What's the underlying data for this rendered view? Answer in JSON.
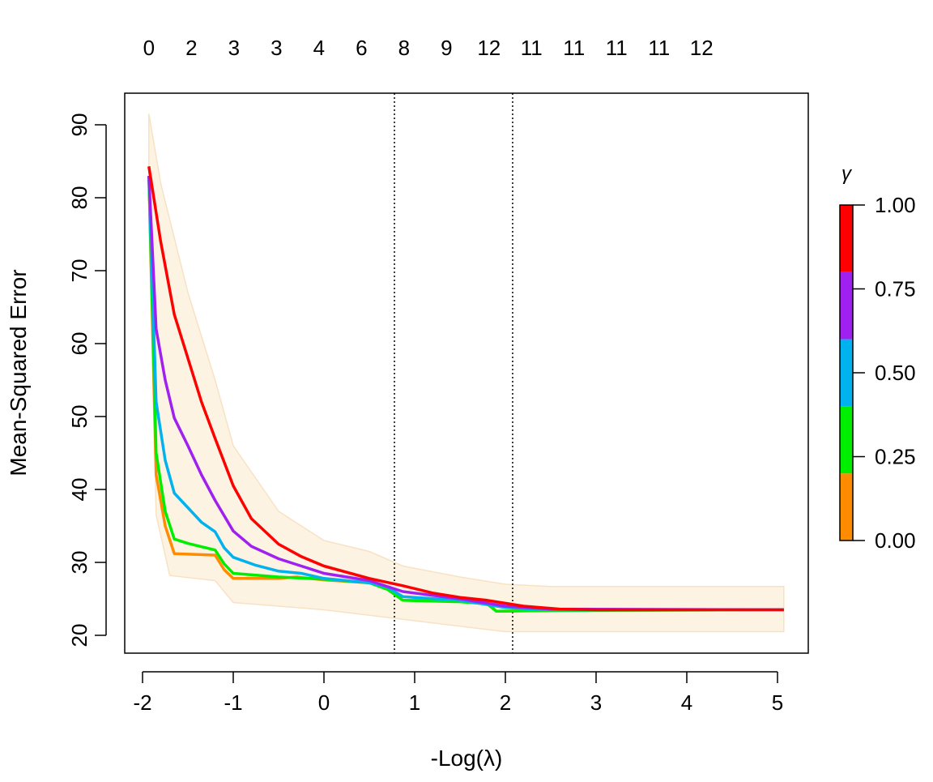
{
  "chart_data": {
    "type": "line",
    "title": "",
    "xlabel": "-Log(λ)",
    "ylabel": "Mean-Squared Error",
    "xlim": [
      -2.2,
      5.35
    ],
    "ylim": [
      17.5,
      94.5
    ],
    "x_ticks": [
      "-2",
      "-1",
      "0",
      "1",
      "2",
      "3",
      "4",
      "5"
    ],
    "y_ticks": [
      "20",
      "30",
      "40",
      "50",
      "60",
      "70",
      "80",
      "90"
    ],
    "top_axis_labels": [
      "0",
      "2",
      "3",
      "3",
      "4",
      "6",
      "8",
      "9",
      "12",
      "11",
      "11",
      "11",
      "11",
      "12"
    ],
    "top_axis_start": -1.93,
    "top_axis_step": 0.4687,
    "vlines": [
      0.777,
      2.08
    ],
    "band": {
      "color": "#fdf3e3",
      "upper": [
        [
          -1.93,
          91.5
        ],
        [
          -1.8,
          82
        ],
        [
          -1.5,
          67
        ],
        [
          -1.2,
          55
        ],
        [
          -1,
          46
        ],
        [
          -0.5,
          37
        ],
        [
          0,
          33
        ],
        [
          0.5,
          31.5
        ],
        [
          0.87,
          29.5
        ],
        [
          1.5,
          28
        ],
        [
          2,
          27
        ],
        [
          2.5,
          26.7
        ],
        [
          5.07,
          26.7
        ]
      ],
      "lower": [
        [
          -1.93,
          77
        ],
        [
          -1.85,
          36.5
        ],
        [
          -1.7,
          28.2
        ],
        [
          -1.2,
          27.5
        ],
        [
          -1,
          24.5
        ],
        [
          0,
          23.5
        ],
        [
          1,
          22
        ],
        [
          2,
          20.5
        ],
        [
          5.07,
          20.5
        ]
      ]
    },
    "series": [
      {
        "name": "γ=0.00",
        "color": "#ff8c00",
        "points": [
          [
            -1.93,
            83
          ],
          [
            -1.85,
            42
          ],
          [
            -1.75,
            35
          ],
          [
            -1.65,
            31.2
          ],
          [
            -1.2,
            31
          ],
          [
            -1.1,
            29
          ],
          [
            -1,
            27.8
          ],
          [
            -0.5,
            27.8
          ],
          [
            -0.3,
            28
          ],
          [
            0,
            27.6
          ],
          [
            0.5,
            27.2
          ],
          [
            0.7,
            26.5
          ],
          [
            0.87,
            24.8
          ],
          [
            1.5,
            24.8
          ],
          [
            1.8,
            24.5
          ],
          [
            1.9,
            23.3
          ],
          [
            2.5,
            23.4
          ],
          [
            5.07,
            23.5
          ]
        ]
      },
      {
        "name": "γ=0.25",
        "color": "#00ee00",
        "points": [
          [
            -1.93,
            83
          ],
          [
            -1.85,
            45
          ],
          [
            -1.75,
            37
          ],
          [
            -1.65,
            33.2
          ],
          [
            -1.5,
            32.6
          ],
          [
            -1.2,
            31.7
          ],
          [
            -1.1,
            29.8
          ],
          [
            -1,
            28.5
          ],
          [
            -0.5,
            28
          ],
          [
            0,
            27.7
          ],
          [
            0.5,
            27.2
          ],
          [
            0.7,
            26.3
          ],
          [
            0.87,
            24.8
          ],
          [
            1.5,
            24.6
          ],
          [
            1.8,
            24.3
          ],
          [
            1.9,
            23.3
          ],
          [
            2.5,
            23.4
          ],
          [
            5.07,
            23.5
          ]
        ]
      },
      {
        "name": "γ=0.50",
        "color": "#00b2ee",
        "points": [
          [
            -1.93,
            83
          ],
          [
            -1.85,
            52
          ],
          [
            -1.75,
            44
          ],
          [
            -1.65,
            39.5
          ],
          [
            -1.5,
            37.5
          ],
          [
            -1.35,
            35.5
          ],
          [
            -1.2,
            34.2
          ],
          [
            -1.1,
            32
          ],
          [
            -1,
            30.7
          ],
          [
            -0.75,
            29.6
          ],
          [
            -0.5,
            28.8
          ],
          [
            -0.25,
            28.5
          ],
          [
            0,
            27.8
          ],
          [
            0.5,
            27.2
          ],
          [
            0.7,
            26.6
          ],
          [
            0.87,
            25.3
          ],
          [
            1.5,
            24.8
          ],
          [
            2,
            23.8
          ],
          [
            2.5,
            23.5
          ],
          [
            5.07,
            23.5
          ]
        ]
      },
      {
        "name": "γ=0.75",
        "color": "#a020f0",
        "points": [
          [
            -1.93,
            83
          ],
          [
            -1.85,
            62
          ],
          [
            -1.75,
            55
          ],
          [
            -1.65,
            49.8
          ],
          [
            -1.5,
            46
          ],
          [
            -1.35,
            42
          ],
          [
            -1.2,
            38.5
          ],
          [
            -1,
            34.3
          ],
          [
            -0.8,
            32.2
          ],
          [
            -0.5,
            30.5
          ],
          [
            -0.25,
            29.5
          ],
          [
            0,
            28.5
          ],
          [
            0.5,
            27.5
          ],
          [
            0.87,
            26
          ],
          [
            1.5,
            25
          ],
          [
            2,
            24
          ],
          [
            2.5,
            23.6
          ],
          [
            5.07,
            23.5
          ]
        ]
      },
      {
        "name": "γ=1.00",
        "color": "#ff0000",
        "points": [
          [
            -1.93,
            84.3
          ],
          [
            -1.8,
            74
          ],
          [
            -1.65,
            64
          ],
          [
            -1.5,
            58
          ],
          [
            -1.35,
            52
          ],
          [
            -1.2,
            47
          ],
          [
            -1,
            40.5
          ],
          [
            -0.8,
            36
          ],
          [
            -0.5,
            32.5
          ],
          [
            -0.25,
            30.8
          ],
          [
            0,
            29.5
          ],
          [
            0.5,
            27.8
          ],
          [
            0.87,
            26.8
          ],
          [
            1.2,
            25.8
          ],
          [
            1.5,
            25.2
          ],
          [
            1.8,
            24.8
          ],
          [
            2.2,
            24
          ],
          [
            2.6,
            23.6
          ],
          [
            3,
            23.5
          ],
          [
            5.07,
            23.5
          ]
        ]
      }
    ],
    "colorbar": {
      "title": "γ",
      "range": [
        0,
        1
      ],
      "ticks": [
        "0.00",
        "0.25",
        "0.50",
        "0.75",
        "1.00"
      ],
      "tick_values": [
        0,
        0.25,
        0.5,
        0.75,
        1
      ],
      "segments": [
        {
          "from": 0.0,
          "to": 0.2,
          "color": "#ff8c00"
        },
        {
          "from": 0.2,
          "to": 0.4,
          "color": "#00ee00"
        },
        {
          "from": 0.4,
          "to": 0.6,
          "color": "#00b2ee"
        },
        {
          "from": 0.6,
          "to": 0.8,
          "color": "#a020f0"
        },
        {
          "from": 0.8,
          "to": 1.0,
          "color": "#ff0000"
        }
      ]
    }
  }
}
